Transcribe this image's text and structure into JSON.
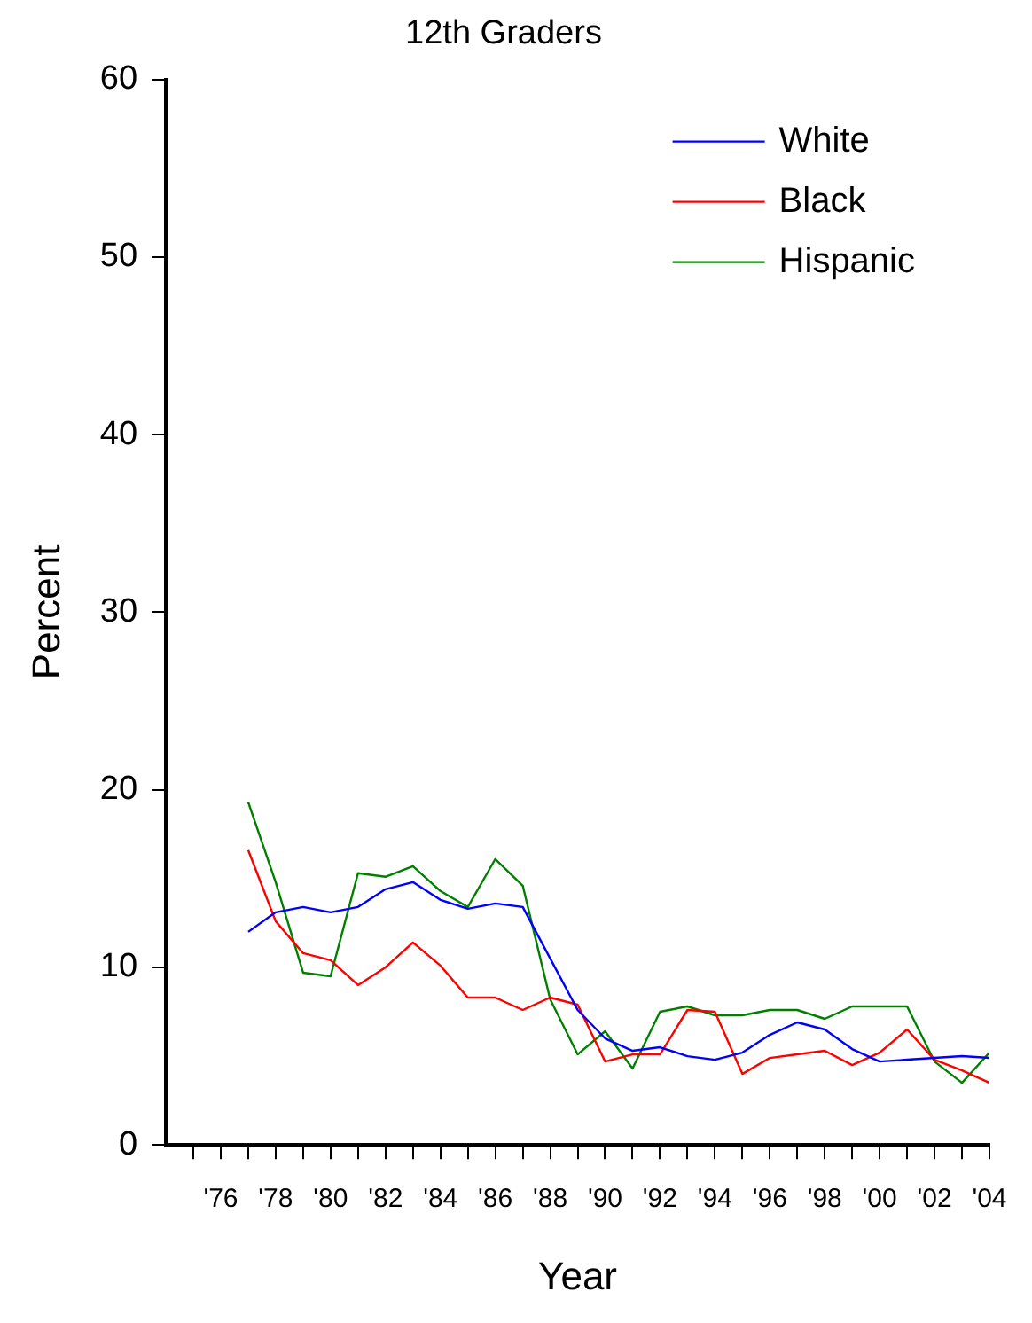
{
  "chart_data": {
    "type": "line",
    "title": "12th Graders",
    "xlabel": "Year",
    "ylabel": "Percent",
    "x": [
      1977,
      1978,
      1979,
      1980,
      1981,
      1982,
      1983,
      1984,
      1985,
      1986,
      1987,
      1988,
      1989,
      1990,
      1991,
      1992,
      1993,
      1994,
      1995,
      1996,
      1997,
      1998,
      1999,
      2000,
      2001,
      2002,
      2003,
      2004
    ],
    "series": [
      {
        "name": "White",
        "color": "#0000ff",
        "values": [
          12.0,
          13.1,
          13.4,
          13.1,
          13.4,
          14.4,
          14.8,
          13.8,
          13.3,
          13.6,
          13.4,
          10.5,
          7.6,
          6.0,
          5.3,
          5.5,
          5.0,
          4.8,
          5.2,
          6.2,
          6.9,
          6.5,
          5.4,
          4.7,
          4.8,
          4.9,
          5.0,
          4.9
        ]
      },
      {
        "name": "Black",
        "color": "#ff0000",
        "values": [
          16.6,
          12.6,
          10.8,
          10.4,
          9.0,
          10.0,
          11.4,
          10.1,
          8.3,
          8.3,
          7.6,
          8.3,
          7.9,
          4.7,
          5.1,
          5.1,
          7.6,
          7.5,
          4.0,
          4.9,
          5.1,
          5.3,
          4.5,
          5.2,
          6.5,
          4.8,
          4.2,
          3.5
        ]
      },
      {
        "name": "Hispanic",
        "color": "#008000",
        "values": [
          19.3,
          14.8,
          9.7,
          9.5,
          15.3,
          15.1,
          15.7,
          14.3,
          13.4,
          16.1,
          14.6,
          8.2,
          5.1,
          6.4,
          4.3,
          7.5,
          7.8,
          7.3,
          7.3,
          7.6,
          7.6,
          7.1,
          7.8,
          7.8,
          7.8,
          4.7,
          3.5,
          5.2
        ]
      }
    ],
    "xlim": [
      1974,
      2004
    ],
    "xticks": [
      {
        "value": 1975,
        "label": null
      },
      {
        "value": 1976,
        "label": "'76"
      },
      {
        "value": 1977,
        "label": null
      },
      {
        "value": 1978,
        "label": "'78"
      },
      {
        "value": 1979,
        "label": null
      },
      {
        "value": 1980,
        "label": "'80"
      },
      {
        "value": 1981,
        "label": null
      },
      {
        "value": 1982,
        "label": "'82"
      },
      {
        "value": 1983,
        "label": null
      },
      {
        "value": 1984,
        "label": "'84"
      },
      {
        "value": 1985,
        "label": null
      },
      {
        "value": 1986,
        "label": "'86"
      },
      {
        "value": 1987,
        "label": null
      },
      {
        "value": 1988,
        "label": "'88"
      },
      {
        "value": 1989,
        "label": null
      },
      {
        "value": 1990,
        "label": "'90"
      },
      {
        "value": 1991,
        "label": null
      },
      {
        "value": 1992,
        "label": "'92"
      },
      {
        "value": 1993,
        "label": null
      },
      {
        "value": 1994,
        "label": "'94"
      },
      {
        "value": 1995,
        "label": null
      },
      {
        "value": 1996,
        "label": "'96"
      },
      {
        "value": 1997,
        "label": null
      },
      {
        "value": 1998,
        "label": "'98"
      },
      {
        "value": 1999,
        "label": null
      },
      {
        "value": 2000,
        "label": "'00"
      },
      {
        "value": 2001,
        "label": null
      },
      {
        "value": 2002,
        "label": "'02"
      },
      {
        "value": 2003,
        "label": null
      },
      {
        "value": 2004,
        "label": "'04"
      }
    ],
    "ylim": [
      0,
      60
    ],
    "yticks": [
      0,
      10,
      20,
      30,
      40,
      50,
      60
    ],
    "grid": false,
    "legend": "top right",
    "marker": "none",
    "line_style": "solid"
  }
}
